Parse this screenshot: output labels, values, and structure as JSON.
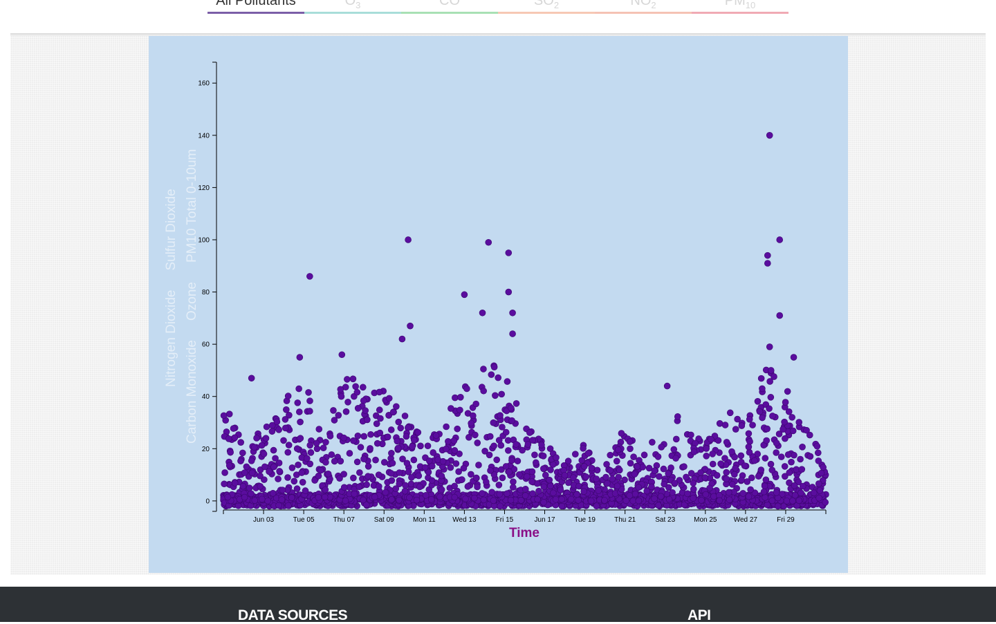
{
  "tabs": [
    {
      "label": "All Pollutants",
      "sub": "",
      "color": "#7b5ea7",
      "active": true
    },
    {
      "label": "O",
      "sub": "3",
      "color": "#a8ddd9",
      "active": false
    },
    {
      "label": "CO",
      "sub": "",
      "color": "#a8e0b4",
      "active": false
    },
    {
      "label": "SO",
      "sub": "2",
      "color": "#f7c8b4",
      "active": false
    },
    {
      "label": "NO",
      "sub": "2",
      "color": "#f5c2b4",
      "active": false
    },
    {
      "label": "PM",
      "sub": "10",
      "color": "#f0aab4",
      "active": false
    }
  ],
  "y_legend": {
    "col1": [
      "Nitrogen Dioxide",
      "Sulfur Dioxide"
    ],
    "col2": [
      "Carbon Monoxide",
      "Ozone",
      "PM10 Total 0-10um"
    ]
  },
  "footer": {
    "data_sources": "DATA SOURCES",
    "api": "API"
  },
  "colors": {
    "point": "#5a0d9e",
    "xlabel": "#8a0f86",
    "panel": "#c3daf0"
  },
  "chart_data": {
    "type": "scatter",
    "xlabel": "Time",
    "ylabel": "",
    "y_ticks": [
      0,
      20,
      40,
      60,
      80,
      100,
      120,
      140,
      160
    ],
    "ylim": [
      -4,
      168
    ],
    "x_ticks": [
      "Jun 03",
      "Tue 05",
      "Thu 07",
      "Sat 09",
      "Mon 11",
      "Wed 13",
      "Fri 15",
      "Jun 17",
      "Tue 19",
      "Thu 21",
      "Sat 23",
      "Mon 25",
      "Wed 27",
      "Fri 29"
    ],
    "x_range_days": [
      1,
      31
    ],
    "grid": false,
    "notable_points": [
      {
        "x_day": 5.3,
        "y": 86
      },
      {
        "x_day": 10.2,
        "y": 100
      },
      {
        "x_day": 9.9,
        "y": 62
      },
      {
        "x_day": 10.3,
        "y": 67
      },
      {
        "x_day": 13.0,
        "y": 79
      },
      {
        "x_day": 14.2,
        "y": 99
      },
      {
        "x_day": 13.9,
        "y": 72
      },
      {
        "x_day": 15.2,
        "y": 95
      },
      {
        "x_day": 15.2,
        "y": 80
      },
      {
        "x_day": 15.4,
        "y": 72
      },
      {
        "x_day": 15.4,
        "y": 64
      },
      {
        "x_day": 4.8,
        "y": 55
      },
      {
        "x_day": 6.9,
        "y": 56
      },
      {
        "x_day": 2.4,
        "y": 47
      },
      {
        "x_day": 28.2,
        "y": 140
      },
      {
        "x_day": 28.7,
        "y": 100
      },
      {
        "x_day": 28.1,
        "y": 94
      },
      {
        "x_day": 28.1,
        "y": 91
      },
      {
        "x_day": 28.7,
        "y": 71
      },
      {
        "x_day": 28.2,
        "y": 59
      },
      {
        "x_day": 29.4,
        "y": 55
      },
      {
        "x_day": 23.1,
        "y": 44
      }
    ],
    "bulk_envelope": [
      {
        "x_day": 1,
        "max": 43
      },
      {
        "x_day": 2,
        "max": 20
      },
      {
        "x_day": 3,
        "max": 28
      },
      {
        "x_day": 4,
        "max": 38
      },
      {
        "x_day": 5,
        "max": 48
      },
      {
        "x_day": 6,
        "max": 22
      },
      {
        "x_day": 7,
        "max": 50
      },
      {
        "x_day": 8,
        "max": 44
      },
      {
        "x_day": 9,
        "max": 42
      },
      {
        "x_day": 10,
        "max": 36
      },
      {
        "x_day": 11,
        "max": 22
      },
      {
        "x_day": 12,
        "max": 30
      },
      {
        "x_day": 13,
        "max": 52
      },
      {
        "x_day": 14,
        "max": 55
      },
      {
        "x_day": 15,
        "max": 50
      },
      {
        "x_day": 16,
        "max": 30
      },
      {
        "x_day": 17,
        "max": 22
      },
      {
        "x_day": 18,
        "max": 15
      },
      {
        "x_day": 19,
        "max": 22
      },
      {
        "x_day": 20,
        "max": 14
      },
      {
        "x_day": 21,
        "max": 30
      },
      {
        "x_day": 22,
        "max": 20
      },
      {
        "x_day": 23,
        "max": 28
      },
      {
        "x_day": 24,
        "max": 35
      },
      {
        "x_day": 25,
        "max": 22
      },
      {
        "x_day": 26,
        "max": 35
      },
      {
        "x_day": 27,
        "max": 30
      },
      {
        "x_day": 28,
        "max": 52
      },
      {
        "x_day": 29,
        "max": 45
      },
      {
        "x_day": 30,
        "max": 28
      },
      {
        "x_day": 31,
        "max": 20
      }
    ]
  }
}
